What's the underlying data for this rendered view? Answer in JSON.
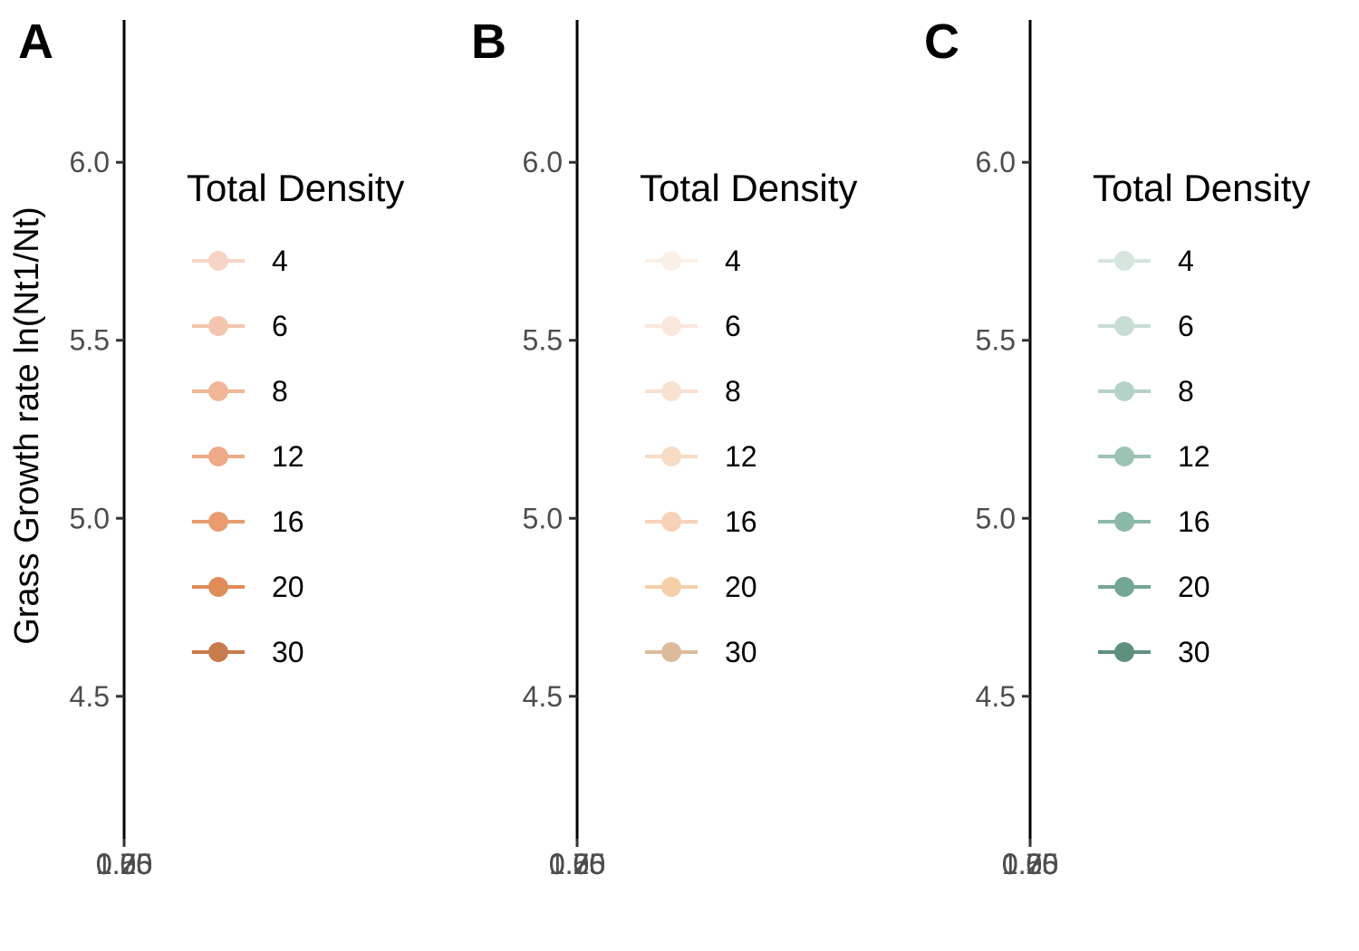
{
  "chart_data": [
    {
      "panel_label": "A",
      "type": "line",
      "ylabel": "Grass Growth rate ln(Nt1/Nt)",
      "xlabel": "",
      "y_ticks": [
        "4.5",
        "5.0",
        "5.5",
        "6.0"
      ],
      "x_tick_labels": [
        "0.25",
        "0.50",
        "0.75",
        "1.00"
      ],
      "ylim": [
        4.1,
        6.4
      ],
      "grid": false,
      "legend": {
        "title": "Total Density",
        "placement": "right",
        "entries": [
          {
            "label": "4",
            "color": "#f6d5c6"
          },
          {
            "label": "6",
            "color": "#f4c5ae"
          },
          {
            "label": "8",
            "color": "#f1b798"
          },
          {
            "label": "12",
            "color": "#eda988"
          },
          {
            "label": "16",
            "color": "#e89c70"
          },
          {
            "label": "20",
            "color": "#e08c58"
          },
          {
            "label": "30",
            "color": "#c87b4b"
          }
        ]
      },
      "series": []
    },
    {
      "panel_label": "B",
      "type": "line",
      "ylabel": "",
      "xlabel": "",
      "y_ticks": [
        "4.5",
        "5.0",
        "5.5",
        "6.0"
      ],
      "x_tick_labels": [
        "0.25",
        "0.50",
        "0.75",
        "1.00"
      ],
      "ylim": [
        4.1,
        6.4
      ],
      "grid": false,
      "legend": {
        "title": "Total Density",
        "placement": "right",
        "entries": [
          {
            "label": "4",
            "color": "#fcefe5"
          },
          {
            "label": "6",
            "color": "#fbe8dc"
          },
          {
            "label": "8",
            "color": "#f9e1d1"
          },
          {
            "label": "12",
            "color": "#f8dbc5"
          },
          {
            "label": "16",
            "color": "#f6d2b8"
          },
          {
            "label": "20",
            "color": "#f4cfa8"
          },
          {
            "label": "30",
            "color": "#dcbb9c"
          }
        ]
      },
      "series": []
    },
    {
      "panel_label": "C",
      "type": "line",
      "ylabel": "",
      "xlabel": "",
      "y_ticks": [
        "4.5",
        "5.0",
        "5.5",
        "6.0"
      ],
      "x_tick_labels": [
        "0.25",
        "0.50",
        "0.75",
        "1.00"
      ],
      "ylim": [
        4.1,
        6.4
      ],
      "grid": false,
      "legend": {
        "title": "Total Density",
        "placement": "right",
        "entries": [
          {
            "label": "4",
            "color": "#d6e5de"
          },
          {
            "label": "6",
            "color": "#c7ddd4"
          },
          {
            "label": "8",
            "color": "#b5d2c7"
          },
          {
            "label": "12",
            "color": "#9dc3b4"
          },
          {
            "label": "16",
            "color": "#8cb8a7"
          },
          {
            "label": "20",
            "color": "#73a694"
          },
          {
            "label": "30",
            "color": "#5f907e"
          }
        ]
      },
      "series": []
    }
  ]
}
